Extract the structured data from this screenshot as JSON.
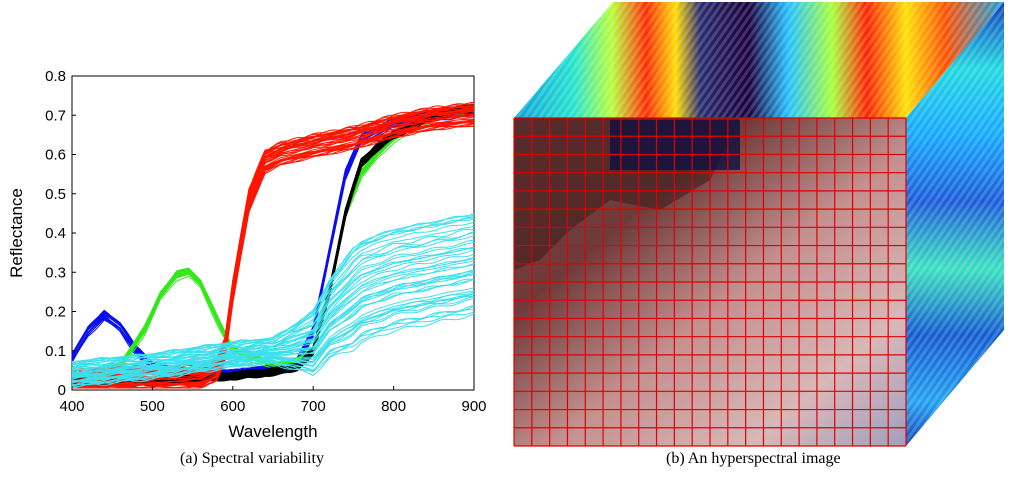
{
  "chart_data": {
    "type": "line",
    "xlabel": "Wavelength",
    "ylabel": "Reflectance",
    "xlim": [
      400,
      900
    ],
    "ylim": [
      0,
      0.8
    ],
    "xticks": [
      "400",
      "500",
      "600",
      "700",
      "800",
      "900"
    ],
    "yticks": [
      "0",
      "0.1",
      "0.2",
      "0.3",
      "0.4",
      "0.5",
      "0.6",
      "0.7",
      "0.8"
    ],
    "grid": false,
    "legend": "none",
    "series": [
      {
        "color": "#0a0ef0",
        "count": 20,
        "spread": 0.012,
        "x": [
          400,
          420,
          440,
          460,
          480,
          500,
          520,
          560,
          600,
          640,
          680,
          700,
          720,
          740,
          760,
          780,
          800,
          850,
          900
        ],
        "y": [
          0.08,
          0.15,
          0.19,
          0.16,
          0.1,
          0.06,
          0.05,
          0.04,
          0.04,
          0.05,
          0.07,
          0.15,
          0.35,
          0.55,
          0.64,
          0.66,
          0.68,
          0.7,
          0.71
        ]
      },
      {
        "color": "#33e81a",
        "count": 20,
        "spread": 0.012,
        "x": [
          400,
          460,
          490,
          510,
          530,
          545,
          560,
          580,
          600,
          640,
          660,
          680,
          700,
          720,
          740,
          760,
          780,
          800,
          850,
          900
        ],
        "y": [
          0.03,
          0.06,
          0.15,
          0.24,
          0.29,
          0.3,
          0.27,
          0.18,
          0.1,
          0.07,
          0.06,
          0.07,
          0.1,
          0.25,
          0.45,
          0.55,
          0.6,
          0.64,
          0.7,
          0.72
        ]
      },
      {
        "color": "#000000",
        "count": 25,
        "spread": 0.008,
        "x": [
          400,
          480,
          560,
          620,
          660,
          680,
          700,
          720,
          740,
          760,
          780,
          800,
          850,
          900
        ],
        "y": [
          0.02,
          0.02,
          0.03,
          0.04,
          0.05,
          0.06,
          0.1,
          0.25,
          0.45,
          0.58,
          0.62,
          0.65,
          0.7,
          0.72
        ]
      },
      {
        "color": "#ff1500",
        "count": 40,
        "spread": 0.03,
        "x": [
          400,
          480,
          520,
          560,
          580,
          590,
          600,
          620,
          640,
          660,
          700,
          750,
          800,
          850,
          900
        ],
        "y": [
          0.02,
          0.03,
          0.03,
          0.03,
          0.05,
          0.1,
          0.25,
          0.48,
          0.58,
          0.6,
          0.62,
          0.64,
          0.67,
          0.69,
          0.7
        ]
      },
      {
        "color": "#3de0ec",
        "count": 45,
        "spread": 0.13,
        "x": [
          400,
          500,
          600,
          650,
          680,
          700,
          720,
          760,
          800,
          850,
          900
        ],
        "y": [
          0.04,
          0.06,
          0.09,
          0.1,
          0.11,
          0.12,
          0.18,
          0.25,
          0.28,
          0.3,
          0.32
        ]
      }
    ]
  },
  "figure_b": {
    "colors": {
      "grid": "#e00000",
      "cube_top": "#1530c8",
      "cube_side": "#1e6fd0",
      "face_base": "#a07878"
    }
  },
  "captions": {
    "a": "(a) Spectral variability",
    "b": "(b) An hyperspectral image"
  }
}
